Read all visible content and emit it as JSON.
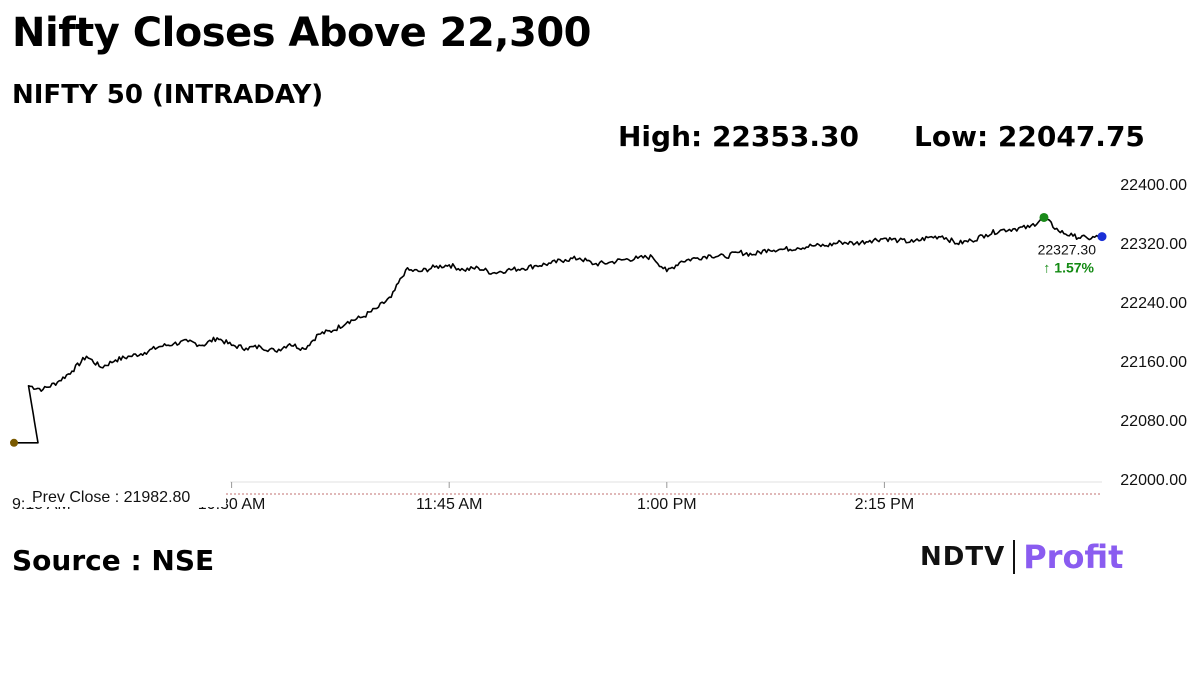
{
  "title": "Nifty Closes Above 22,300",
  "subtitle": "NIFTY 50 (INTRADAY)",
  "high_label": "High: 22353.30",
  "low_label": "Low: 22047.75",
  "source": "Source : NSE",
  "logo": {
    "left": "NDTV",
    "right": "Profit"
  },
  "colors": {
    "line": "#000000",
    "high_marker": "#1a8a1a",
    "last_marker": "#1a2fd6",
    "start_marker": "#7a5a00",
    "change": "#138a13",
    "prev_close_line": "#c07070",
    "logo_accent": "#8a5cf0"
  },
  "chart_data": {
    "type": "line",
    "title": "NIFTY 50 (INTRADAY)",
    "xlabel": "",
    "ylabel": "",
    "ylim": [
      22000,
      22400
    ],
    "yticks": [
      22400,
      22320,
      22240,
      22160,
      22080,
      22000
    ],
    "ytick_labels": [
      "22400.00",
      "22320.00",
      "22240.00",
      "22160.00",
      "22080.00",
      "22000.00"
    ],
    "xlim": [
      "09:15",
      "15:30"
    ],
    "xticks": [
      "10:30",
      "11:45",
      "13:00",
      "14:15"
    ],
    "xtick_labels": [
      "10:30 AM",
      "11:45 AM",
      "1:00 PM",
      "2:15 PM"
    ],
    "first_xtick_label": "9:15 AM",
    "prev_close": 21982.8,
    "prev_close_label": "Prev Close : 21982.80",
    "last_value_label": "22327.30",
    "change_label": "↑ 1.57%",
    "high": 22353.3,
    "low": 22047.75,
    "series": [
      {
        "x": [
          "09:15",
          "09:20",
          "09:25",
          "09:30",
          "09:35",
          "09:40",
          "09:45",
          "09:50",
          "09:55",
          "10:00",
          "10:05",
          "10:10",
          "10:15",
          "10:20",
          "10:25",
          "10:30",
          "10:35",
          "10:40",
          "10:45",
          "10:50",
          "10:55",
          "11:00",
          "11:05",
          "11:10",
          "11:15",
          "11:20",
          "11:25",
          "11:30",
          "11:35",
          "11:40",
          "11:45",
          "11:50",
          "11:55",
          "12:00",
          "12:05",
          "12:10",
          "12:15",
          "12:20",
          "12:25",
          "12:30",
          "12:35",
          "12:40",
          "12:45",
          "12:50",
          "12:55",
          "13:00",
          "13:05",
          "13:10",
          "13:15",
          "13:20",
          "13:25",
          "13:30",
          "13:35",
          "13:40",
          "13:45",
          "13:50",
          "13:55",
          "14:00",
          "14:05",
          "14:10",
          "14:15",
          "14:20",
          "14:25",
          "14:30",
          "14:35",
          "14:40",
          "14:45",
          "14:50",
          "14:55",
          "15:00",
          "15:05",
          "15:10",
          "15:15",
          "15:20",
          "15:25",
          "15:30"
        ],
        "values": [
          22047.75,
          22125,
          22120,
          22130,
          22145,
          22165,
          22150,
          22160,
          22165,
          22170,
          22178,
          22182,
          22185,
          22180,
          22190,
          22180,
          22176,
          22178,
          22172,
          22182,
          22175,
          22195,
          22200,
          22212,
          22218,
          22230,
          22245,
          22282,
          22280,
          22286,
          22289,
          22282,
          22285,
          22278,
          22282,
          22284,
          22288,
          22291,
          22296,
          22298,
          22290,
          22292,
          22296,
          22298,
          22300,
          22280,
          22294,
          22298,
          22302,
          22300,
          22306,
          22303,
          22310,
          22310,
          22312,
          22315,
          22315,
          22320,
          22318,
          22322,
          22325,
          22322,
          22320,
          22326,
          22328,
          22318,
          22322,
          22330,
          22336,
          22338,
          22340,
          22353.3,
          22335,
          22328,
          22325,
          22327.3
        ]
      }
    ]
  }
}
